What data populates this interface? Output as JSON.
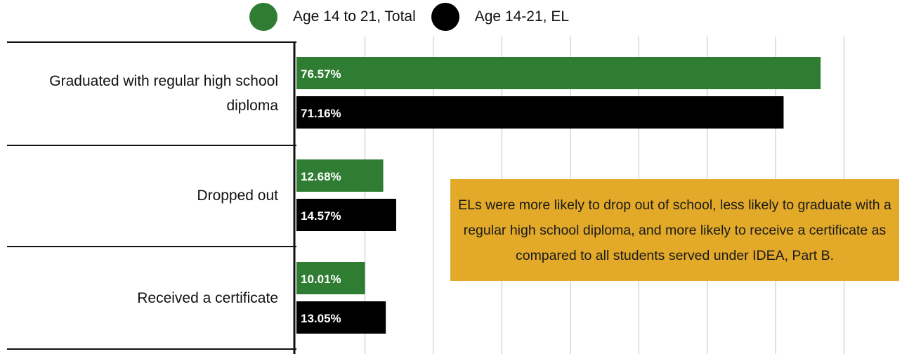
{
  "chart_data": {
    "type": "bar",
    "orientation": "horizontal",
    "categories": [
      "Graduated with regular high school diploma",
      "Dropped out",
      "Received a certificate"
    ],
    "series": [
      {
        "name": "Age 14 to 21, Total",
        "color": "#2e7d32",
        "values": [
          76.57,
          12.68,
          10.01
        ]
      },
      {
        "name": "Age 14-21, EL",
        "color": "#000000",
        "values": [
          71.16,
          14.57,
          13.05
        ]
      }
    ],
    "data_labels": [
      [
        "76.57%",
        "12.68%",
        "10.01%"
      ],
      [
        "71.16%",
        "14.57%",
        "13.05%"
      ]
    ],
    "xlim": [
      0,
      80
    ],
    "grid": true,
    "legend_position": "top",
    "annotation": {
      "text": "ELs were more likely to drop out of school, less likely to graduate with a regular high school diploma, and more likely to receive a certificate as compared to all students served under IDEA, Part B.",
      "background": "#e3aa2a"
    },
    "title": "",
    "xlabel": "",
    "ylabel": ""
  }
}
